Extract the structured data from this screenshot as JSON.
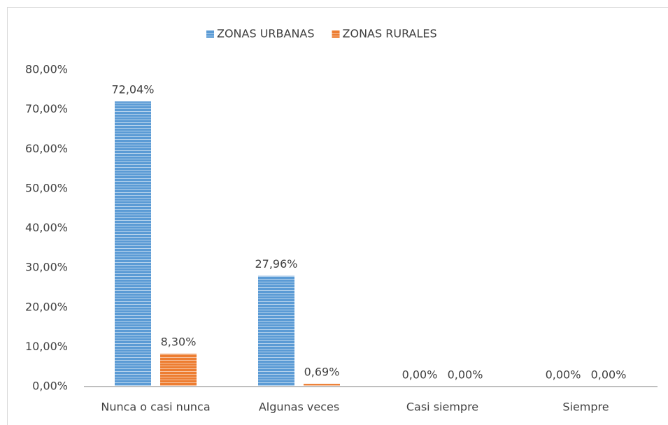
{
  "chart_data": {
    "type": "bar",
    "categories": [
      "Nunca o casi nunca",
      "Algunas veces",
      "Casi siempre",
      "Siempre"
    ],
    "series": [
      {
        "name": "ZONAS URBANAS",
        "color": "#5b9bd5",
        "values": [
          72.04,
          27.96,
          0,
          0
        ],
        "value_labels": [
          "72,04%",
          "27,96%",
          "0,00%",
          "0,00%"
        ]
      },
      {
        "name": "ZONAS RURALES",
        "color": "#ed7d31",
        "values": [
          8.3,
          0.69,
          0,
          0
        ],
        "value_labels": [
          "8,30%",
          "0,69%",
          "0,00%",
          "0,00%"
        ]
      }
    ],
    "ylim": [
      0,
      80
    ],
    "yticks": [
      {
        "value": 0,
        "label": "0,00%"
      },
      {
        "value": 10,
        "label": "10,00%"
      },
      {
        "value": 20,
        "label": "20,00%"
      },
      {
        "value": 30,
        "label": "30,00%"
      },
      {
        "value": 40,
        "label": "40,00%"
      },
      {
        "value": 50,
        "label": "50,00%"
      },
      {
        "value": 60,
        "label": "60,00%"
      },
      {
        "value": 70,
        "label": "70,00%"
      },
      {
        "value": 80,
        "label": "80,00%"
      }
    ],
    "legend": "top",
    "grid": false
  }
}
